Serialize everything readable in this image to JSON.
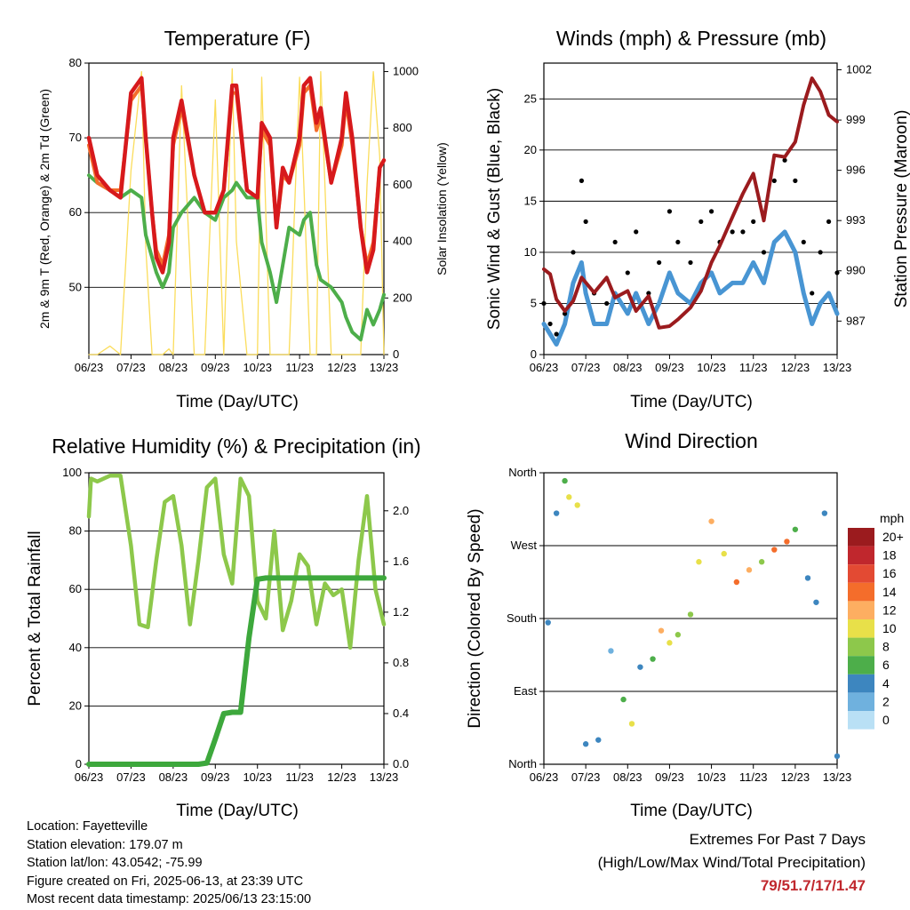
{
  "chart_data": [
    {
      "type": "line",
      "title": "Temperature (F)",
      "xlabel": "Time (Day/UTC)",
      "ylabel": "2m & 9m T (Red, Orange) & 2m Td (Green)",
      "y2label": "Solar Insolation (Yellow)",
      "ylim": [
        41,
        80
      ],
      "y2lim": [
        0,
        1030
      ],
      "yticks": [
        "50",
        "60",
        "70",
        "80"
      ],
      "y2ticks": [
        "0",
        "200",
        "400",
        "600",
        "800",
        "1000"
      ],
      "grid": "horizontal",
      "xticks": [
        "06/23",
        "07/23",
        "08/23",
        "09/23",
        "10/23",
        "11/23",
        "12/23",
        "13/23"
      ],
      "x": [
        6.0,
        6.2,
        6.5,
        6.75,
        7.0,
        7.25,
        7.35,
        7.5,
        7.6,
        7.75,
        7.9,
        8.0,
        8.2,
        8.5,
        8.75,
        9.0,
        9.2,
        9.4,
        9.5,
        9.75,
        10.0,
        10.1,
        10.3,
        10.45,
        10.6,
        10.75,
        11.0,
        11.1,
        11.25,
        11.4,
        11.5,
        11.75,
        12.0,
        12.1,
        12.25,
        12.45,
        12.6,
        12.75,
        12.9,
        13.0
      ],
      "series": [
        {
          "color": "#d7191c",
          "values": [
            70,
            65,
            63,
            62,
            76,
            78,
            70,
            60,
            54,
            52,
            56,
            70,
            75,
            65,
            60,
            60,
            63,
            77,
            77,
            63,
            62,
            72,
            70,
            58,
            66,
            64,
            70,
            77,
            78,
            72,
            74,
            64,
            70,
            76,
            70,
            58,
            52,
            55,
            66,
            67
          ]
        },
        {
          "color": "#f46d2b",
          "values": [
            69,
            64,
            63,
            63,
            75,
            77,
            70,
            60,
            55,
            53,
            57,
            69,
            74,
            65,
            60,
            60,
            63,
            76,
            76,
            63,
            62,
            71,
            69,
            58,
            65,
            64,
            69,
            76,
            77,
            71,
            73,
            64,
            69,
            75,
            69,
            58,
            53,
            56,
            66,
            67
          ]
        },
        {
          "color": "#4dae4a",
          "values": [
            65,
            64,
            63,
            62,
            63,
            62,
            57,
            54,
            52,
            50,
            52,
            58,
            60,
            62,
            60,
            59,
            62,
            63,
            64,
            62,
            62,
            56,
            52,
            48,
            53,
            58,
            57,
            59,
            60,
            53,
            51,
            50,
            48,
            46,
            44,
            43,
            47,
            45,
            47,
            49
          ]
        },
        {
          "color": "#fbdd5c",
          "values": [
            0,
            0,
            30,
            0,
            650,
            1000,
            380,
            0,
            0,
            0,
            20,
            0,
            950,
            0,
            0,
            900,
            0,
            1010,
            400,
            0,
            0,
            980,
            0,
            0,
            0,
            0,
            980,
            600,
            0,
            0,
            1000,
            0,
            0,
            0,
            0,
            0,
            600,
            1000,
            700,
            0
          ]
        }
      ]
    },
    {
      "type": "scatter",
      "title": "Winds (mph) & Pressure (mb)",
      "xlabel": "Time (Day/UTC)",
      "ylabel": "Sonic Wind & Gust (Blue, Black)",
      "y2label": "Station Pressure (Maroon)",
      "ylim": [
        0,
        28.5
      ],
      "y2lim": [
        985.0,
        1002.4
      ],
      "yticks": [
        "0",
        "5",
        "10",
        "15",
        "20",
        "25"
      ],
      "y2ticks": [
        "987",
        "990",
        "993",
        "996",
        "999",
        "1002"
      ],
      "grid": "horizontal",
      "xticks": [
        "06/23",
        "07/23",
        "08/23",
        "09/23",
        "10/23",
        "11/23",
        "12/23",
        "13/23"
      ],
      "x": [
        6.0,
        6.15,
        6.3,
        6.5,
        6.7,
        6.9,
        7.0,
        7.2,
        7.5,
        7.7,
        8.0,
        8.2,
        8.5,
        8.75,
        9.0,
        9.2,
        9.5,
        9.75,
        10.0,
        10.2,
        10.5,
        10.75,
        11.0,
        11.25,
        11.5,
        11.75,
        12.0,
        12.2,
        12.4,
        12.6,
        12.8,
        13.0
      ],
      "series": [
        {
          "color": "#000000",
          "values": [
            5,
            3,
            2,
            4,
            10,
            17,
            13,
            6,
            5,
            11,
            8,
            12,
            6,
            9,
            14,
            11,
            9,
            13,
            14,
            11,
            12,
            12,
            13,
            10,
            17,
            19,
            17,
            11,
            6,
            10,
            13,
            8
          ]
        },
        {
          "color": "#4895d3",
          "values": [
            3,
            2,
            1,
            3,
            7,
            9,
            6,
            3,
            3,
            6,
            4,
            6,
            3,
            5,
            8,
            6,
            5,
            7,
            8,
            6,
            7,
            7,
            9,
            7,
            11,
            12,
            10,
            6,
            3,
            5,
            6,
            4
          ]
        },
        {
          "color": "#9b1b1e",
          "values": [
            990.1,
            989.8,
            988.3,
            987.6,
            988.2,
            989.6,
            989.3,
            988.7,
            989.6,
            988.4,
            988.8,
            987.6,
            988.5,
            986.6,
            986.7,
            987.1,
            987.8,
            988.8,
            990.5,
            991.5,
            993.2,
            994.6,
            995.8,
            993.0,
            996.9,
            996.8,
            997.7,
            999.9,
            1001.5,
            1000.7,
            999.3,
            998.9
          ]
        }
      ]
    },
    {
      "type": "line",
      "title": "Relative Humidity (%) & Precipitation (in)",
      "xlabel": "Time (Day/UTC)",
      "ylabel": "Percent & Total Rainfall",
      "ylim": [
        0,
        100
      ],
      "y2lim": [
        0,
        2.3
      ],
      "yticks": [
        "0",
        "20",
        "40",
        "60",
        "80",
        "100"
      ],
      "y2ticks": [
        "0.0",
        "0.4",
        "0.8",
        "1.2",
        "1.6",
        "2.0"
      ],
      "grid": "horizontal",
      "xticks": [
        "06/23",
        "07/23",
        "08/23",
        "09/23",
        "10/23",
        "11/23",
        "12/23",
        "13/23"
      ],
      "x": [
        6.0,
        6.05,
        6.2,
        6.5,
        6.75,
        7.0,
        7.2,
        7.4,
        7.6,
        7.8,
        8.0,
        8.2,
        8.4,
        8.6,
        8.8,
        9.0,
        9.2,
        9.4,
        9.6,
        9.8,
        10.0,
        10.2,
        10.4,
        10.6,
        10.8,
        11.0,
        11.2,
        11.4,
        11.6,
        11.8,
        12.0,
        12.2,
        12.4,
        12.6,
        12.8,
        13.0
      ],
      "series": [
        {
          "color": "#8dc84b",
          "values": [
            85,
            98,
            97,
            99,
            99,
            75,
            48,
            47,
            70,
            90,
            92,
            75,
            48,
            70,
            95,
            98,
            72,
            62,
            98,
            92,
            56,
            50,
            80,
            46,
            56,
            72,
            68,
            48,
            62,
            58,
            60,
            40,
            70,
            92,
            60,
            48
          ]
        },
        {
          "color": "#3da83c",
          "values": [
            0,
            0,
            0,
            0,
            0,
            0,
            0,
            0,
            0,
            0,
            0,
            0,
            0,
            0,
            0.01,
            0.2,
            0.4,
            0.41,
            0.41,
            1.0,
            1.46,
            1.47,
            1.47,
            1.47,
            1.47,
            1.47,
            1.47,
            1.47,
            1.47,
            1.47,
            1.47,
            1.47,
            1.47,
            1.47,
            1.47,
            1.47
          ]
        }
      ]
    },
    {
      "type": "scatter",
      "title": "Wind Direction",
      "xlabel": "Time (Day/UTC)",
      "ylabel": "Direction (Colored By Speed)",
      "yticks": [
        "North",
        "East",
        "South",
        "West",
        "North"
      ],
      "grid": "horizontal",
      "xticks": [
        "06/23",
        "07/23",
        "08/23",
        "09/23",
        "10/23",
        "11/23",
        "12/23",
        "13/23"
      ],
      "legend_title": "mph",
      "legend_labels": [
        "20+",
        "18",
        "16",
        "14",
        "12",
        "10",
        "8",
        "6",
        "4",
        "2",
        "0"
      ],
      "legend_colors": [
        "#9b1b1e",
        "#c0272d",
        "#e34a33",
        "#f46d2b",
        "#fdae61",
        "#e8e049",
        "#8dc84b",
        "#4dae4a",
        "#3d86bf",
        "#6fb1de",
        "#b9e0f5"
      ],
      "x": [
        6.1,
        6.3,
        6.5,
        6.6,
        6.8,
        7.0,
        7.3,
        7.6,
        7.9,
        8.1,
        8.3,
        8.6,
        8.8,
        9.0,
        9.2,
        9.5,
        9.7,
        10.0,
        10.3,
        10.6,
        10.9,
        11.2,
        11.5,
        11.8,
        12.0,
        12.3,
        12.5,
        12.7,
        13.0
      ],
      "series": [
        {
          "values": [
            175,
            310,
            350,
            330,
            320,
            25,
            30,
            140,
            80,
            50,
            120,
            130,
            165,
            150,
            160,
            185,
            250,
            300,
            260,
            225,
            240,
            250,
            265,
            275,
            290,
            230,
            200,
            310,
            10
          ],
          "speed": [
            4,
            3,
            6,
            9,
            10,
            4,
            3,
            2,
            5,
            9,
            3,
            5,
            11,
            9,
            7,
            8,
            9,
            12,
            10,
            13,
            11,
            8,
            14,
            13,
            6,
            4,
            3,
            3,
            4
          ]
        }
      ]
    }
  ],
  "info": {
    "location": "Location: Fayetteville",
    "elevation": "Station elevation: 179.07 m",
    "latlon": "Station lat/lon: 43.0542; -75.99",
    "created": "Figure created on Fri, 2025-06-13, at 23:39 UTC",
    "recent": "Most recent data timestamp: 2025/06/13 23:15:00"
  },
  "extremes": {
    "line1": "Extremes For Past 7 Days",
    "line2": "(High/Low/Max Wind/Total Precipitation)",
    "values": "79/51.7/17/1.47"
  }
}
